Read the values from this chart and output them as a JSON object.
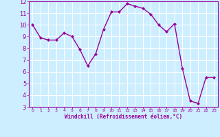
{
  "x": [
    0,
    1,
    2,
    3,
    4,
    5,
    6,
    7,
    8,
    9,
    10,
    11,
    12,
    13,
    14,
    15,
    16,
    17,
    18,
    19,
    20,
    21,
    22,
    23
  ],
  "y": [
    10.0,
    8.9,
    8.7,
    8.7,
    9.3,
    9.0,
    7.9,
    6.5,
    7.5,
    9.6,
    11.1,
    11.1,
    11.8,
    11.6,
    11.4,
    10.9,
    10.0,
    9.4,
    10.1,
    6.3,
    3.5,
    3.3,
    5.5,
    5.5
  ],
  "line_color": "#990099",
  "marker": "D",
  "marker_size": 2.0,
  "bg_color": "#cceeff",
  "grid_color": "#ffffff",
  "xlabel": "Windchill (Refroidissement éolien,°C)",
  "xlabel_color": "#990099",
  "tick_label_color": "#990099",
  "ylim": [
    3,
    12
  ],
  "xlim": [
    -0.5,
    23.5
  ],
  "yticks": [
    3,
    4,
    5,
    6,
    7,
    8,
    9,
    10,
    11,
    12
  ],
  "xticks": [
    0,
    1,
    2,
    3,
    4,
    5,
    6,
    7,
    8,
    9,
    10,
    11,
    12,
    13,
    14,
    15,
    16,
    17,
    18,
    19,
    20,
    21,
    22,
    23
  ],
  "spine_color": "#990099",
  "linewidth": 1.0
}
